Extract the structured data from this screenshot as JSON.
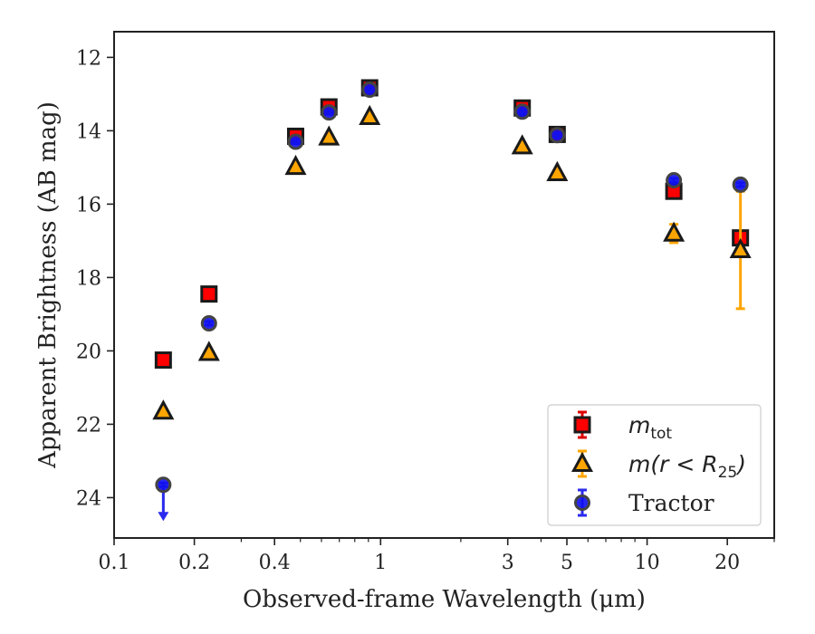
{
  "chart_data": {
    "type": "scatter",
    "xscale": "log",
    "xlim": [
      0.1,
      30
    ],
    "ylim": [
      25.1,
      11.3
    ],
    "y_inverted": true,
    "xlabel": "Observed-frame Wavelength (μm)",
    "ylabel": "Apparent Brightness (AB mag)",
    "x_ticks": [
      {
        "value": 0.1,
        "label": "0.1"
      },
      {
        "value": 0.2,
        "label": "0.2"
      },
      {
        "value": 0.4,
        "label": "0.4"
      },
      {
        "value": 1,
        "label": "1"
      },
      {
        "value": 3,
        "label": "3"
      },
      {
        "value": 5,
        "label": "5"
      },
      {
        "value": 10,
        "label": "10"
      },
      {
        "value": 20,
        "label": "20"
      }
    ],
    "x_minor_ticks": [
      0.3,
      0.5,
      0.6,
      0.7,
      0.8,
      0.9,
      2,
      4,
      6,
      7,
      8,
      9,
      30
    ],
    "y_ticks": [
      {
        "value": 12,
        "label": "12"
      },
      {
        "value": 14,
        "label": "14"
      },
      {
        "value": 16,
        "label": "16"
      },
      {
        "value": 18,
        "label": "18"
      },
      {
        "value": 20,
        "label": "20"
      },
      {
        "value": 22,
        "label": "22"
      },
      {
        "value": 24,
        "label": "24"
      }
    ],
    "legend_position": "lower-right",
    "series": [
      {
        "name": "m_tot",
        "legend_main": "m",
        "legend_sub": "tot",
        "legend_tail": "",
        "marker": "square",
        "color": "#ff0000",
        "edge": "#1a1a1a",
        "err_color": "#dd0000",
        "points": [
          {
            "x": 0.153,
            "y": 20.25,
            "err": 0.05
          },
          {
            "x": 0.227,
            "y": 18.45,
            "err": 0.05
          },
          {
            "x": 0.48,
            "y": 14.15,
            "err": 0.05
          },
          {
            "x": 0.64,
            "y": 13.35,
            "err": 0.05
          },
          {
            "x": 0.91,
            "y": 12.83,
            "err": 0.05
          },
          {
            "x": 3.4,
            "y": 13.38,
            "err": 0.05
          },
          {
            "x": 4.6,
            "y": 14.1,
            "err": 0.05
          },
          {
            "x": 12.6,
            "y": 15.65,
            "err": 0.08
          },
          {
            "x": 22.4,
            "y": 16.92,
            "err": 0.1
          }
        ]
      },
      {
        "name": "m(r < R_25)",
        "legend_main": "m(r < R",
        "legend_sub": "25",
        "legend_tail": ")",
        "marker": "triangle",
        "color": "#ffa500",
        "edge": "#1a1a1a",
        "err_color": "#ffa500",
        "points": [
          {
            "x": 0.153,
            "y": 21.65,
            "err": 0.05
          },
          {
            "x": 0.227,
            "y": 20.05,
            "err": 0.05
          },
          {
            "x": 0.48,
            "y": 14.98,
            "err": 0.05
          },
          {
            "x": 0.64,
            "y": 14.18,
            "err": 0.05
          },
          {
            "x": 0.91,
            "y": 13.62,
            "err": 0.05
          },
          {
            "x": 3.4,
            "y": 14.42,
            "err": 0.05
          },
          {
            "x": 4.6,
            "y": 15.15,
            "err": 0.05
          },
          {
            "x": 12.6,
            "y": 16.8,
            "err": 0.25
          },
          {
            "x": 22.4,
            "y": 17.25,
            "err": 1.6
          }
        ]
      },
      {
        "name": "Tractor",
        "legend_main": "Tractor",
        "legend_sub": "",
        "legend_tail": "",
        "marker": "circle",
        "color": "#1010ee",
        "edge": "#444444",
        "err_color": "#2a2aee",
        "points": [
          {
            "x": 0.153,
            "y": 23.65,
            "err": 0.05,
            "upper_limit": true
          },
          {
            "x": 0.227,
            "y": 19.25,
            "err": 0.05
          },
          {
            "x": 0.48,
            "y": 14.3,
            "err": 0.05
          },
          {
            "x": 0.64,
            "y": 13.5,
            "err": 0.05
          },
          {
            "x": 0.91,
            "y": 12.88,
            "err": 0.05
          },
          {
            "x": 3.4,
            "y": 13.48,
            "err": 0.05
          },
          {
            "x": 4.6,
            "y": 14.12,
            "err": 0.05
          },
          {
            "x": 12.6,
            "y": 15.35,
            "err": 0.05
          },
          {
            "x": 22.4,
            "y": 15.47,
            "err": 0.05
          }
        ]
      }
    ]
  }
}
